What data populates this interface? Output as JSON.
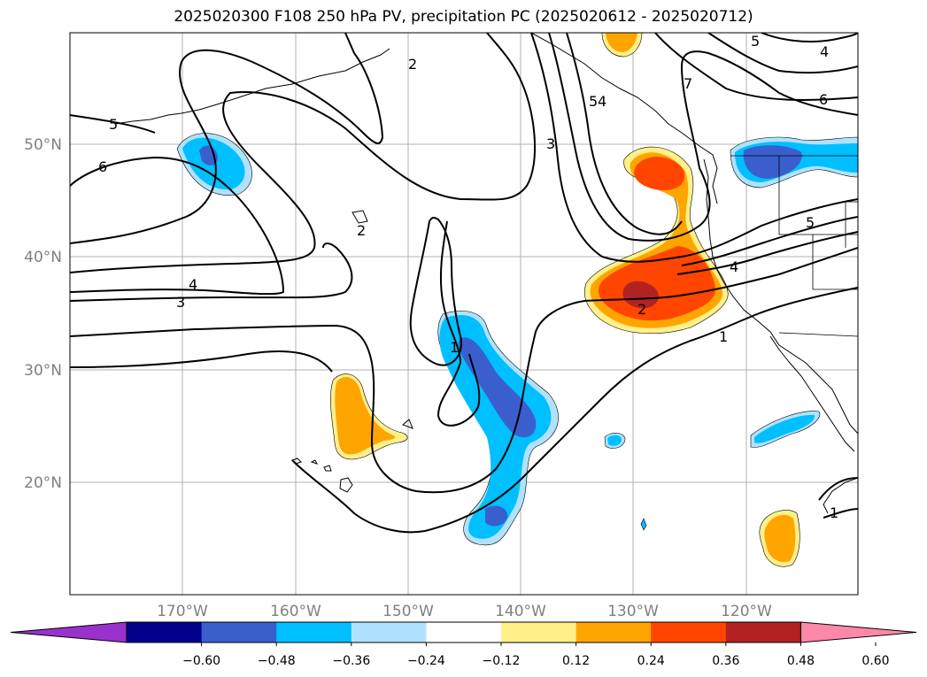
{
  "title": "2025020300 F108 250 hPa PV, precipitation PC (2025020612 - 2025020712)",
  "map": {
    "lat_labels": [
      "50°N",
      "40°N",
      "30°N",
      "20°N"
    ],
    "lon_labels": [
      "170°W",
      "160°W",
      "150°W",
      "140°W",
      "130°W",
      "120°W"
    ],
    "contour_labels": [
      "5",
      "6",
      "2",
      "3",
      "4",
      "3",
      "2",
      "1",
      "4",
      "5",
      "6",
      "7",
      "5",
      "4",
      "5",
      "4",
      "2",
      "1",
      "1",
      "2"
    ]
  },
  "colorbar": {
    "colors": [
      "#9932cc",
      "#00008b",
      "#3a5fcd",
      "#00bfff",
      "#b0e2ff",
      "#ffffff",
      "#fff08a",
      "#ffa500",
      "#ff4500",
      "#b22222",
      "#ff88a8"
    ],
    "tick_labels": [
      "−0.60",
      "−0.48",
      "−0.36",
      "−0.24",
      "−0.12",
      "0.12",
      "0.24",
      "0.36",
      "0.48",
      "0.60"
    ]
  }
}
